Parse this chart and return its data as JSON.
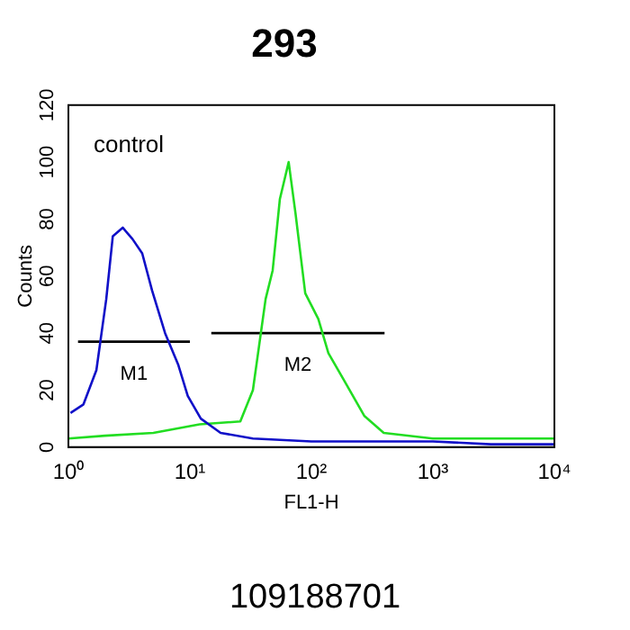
{
  "chart_data": {
    "type": "line",
    "title": "293",
    "xlabel": "FL1-H",
    "ylabel": "Counts",
    "log": "x",
    "xlim": [
      1,
      10000
    ],
    "xticks": [
      {
        "value": 1,
        "label": "10⁰"
      },
      {
        "value": 10,
        "label": "10¹"
      },
      {
        "value": 100,
        "label": "10²"
      },
      {
        "value": 1000,
        "label": "10³"
      },
      {
        "value": 10000,
        "label": "10⁴"
      }
    ],
    "ylim": [
      0,
      120
    ],
    "yticks": [
      0,
      20,
      40,
      60,
      80,
      100,
      120
    ],
    "grid": false,
    "legend": false,
    "marker": "none",
    "line_style": "solid",
    "series": [
      {
        "color": "#1010c8",
        "x": [
          1.04,
          1.33,
          1.7,
          2.05,
          2.32,
          2.8,
          3.37,
          4.05,
          4.88,
          6.25,
          8,
          9.6,
          12.3,
          17.9,
          33,
          100,
          300,
          1000,
          3000,
          10000
        ],
        "values": [
          12,
          15,
          27,
          52,
          74,
          77,
          73,
          68,
          55,
          40,
          29,
          18,
          10,
          5,
          3,
          2,
          2,
          2,
          1,
          1
        ]
      },
      {
        "color": "#22dd22",
        "x": [
          1,
          2,
          5,
          12,
          26,
          33,
          42,
          48,
          55,
          65,
          74,
          89,
          114,
          138,
          188,
          272,
          394,
          1000,
          3000,
          10000
        ],
        "values": [
          3,
          4,
          5,
          8,
          9,
          20,
          52,
          62,
          87,
          100,
          82,
          54,
          45,
          33,
          23,
          11,
          5,
          3,
          3,
          3
        ]
      },
      {
        "color": "#000000",
        "x": [
          1.2,
          10
        ],
        "values": [
          37,
          37
        ]
      },
      {
        "color": "#000000",
        "x": [
          15,
          400
        ],
        "values": [
          40,
          40
        ]
      }
    ],
    "annotations": [
      "control",
      "M1",
      "M2",
      "109188701"
    ]
  }
}
